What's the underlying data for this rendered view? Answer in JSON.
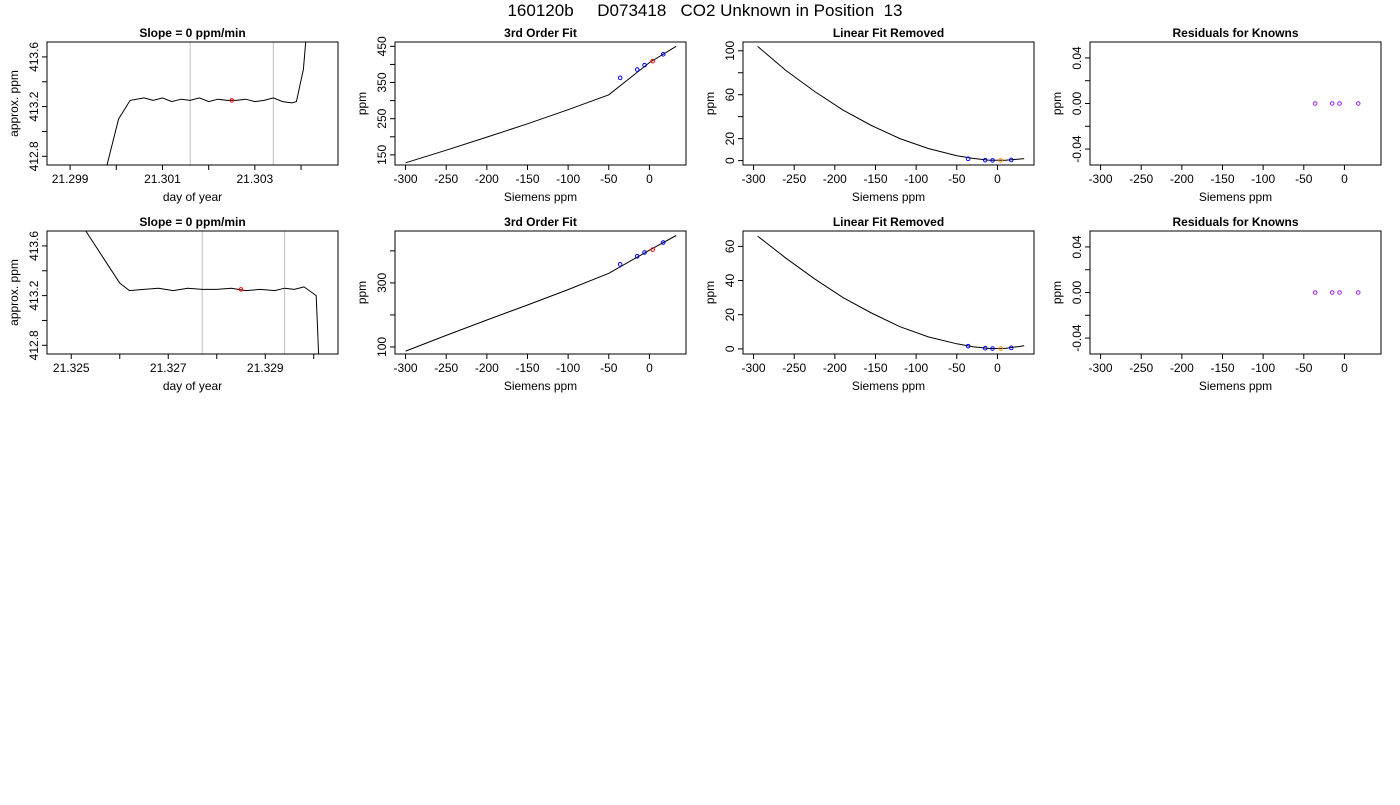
{
  "figure": {
    "title": "160120b     D073418   CO2 Unknown in Position  13"
  },
  "colors": {
    "trace": "#000000",
    "vline": "#bebebe",
    "known": "#0000ff",
    "unknown": "#ff0000",
    "unknown_lin": "#ff8c00",
    "residual": "#a020f0"
  },
  "chart_data": [
    {
      "type": "line",
      "title": "Slope =  0  ppm/min",
      "xlabel": "day of year",
      "ylabel": "approx. ppm",
      "xlim": [
        21.2985,
        21.3048
      ],
      "ylim": [
        412.73,
        413.72
      ],
      "xticks": [
        21.299,
        21.3,
        21.301,
        21.302,
        21.303,
        21.304
      ],
      "xtick_labels": [
        "21.299",
        "",
        "21.301",
        "",
        "21.303",
        ""
      ],
      "yticks": [
        412.8,
        413.0,
        413.2,
        413.4,
        413.6
      ],
      "ytick_labels": [
        "412.8",
        "",
        "413.2",
        "",
        "413.6"
      ],
      "vlines": [
        21.3016,
        21.3034
      ],
      "series": [
        {
          "kind": "line",
          "x": [
            21.2998,
            21.30005,
            21.3003,
            21.3006,
            21.3008,
            21.301,
            21.3012,
            21.3014,
            21.3016,
            21.3018,
            21.302,
            21.3022,
            21.3024,
            21.3026,
            21.3028,
            21.303,
            21.3032,
            21.3034,
            21.3036,
            21.3038,
            21.3039,
            21.30405,
            21.3041
          ],
          "y": [
            412.73,
            413.1,
            413.25,
            413.27,
            413.25,
            413.27,
            413.24,
            413.26,
            413.25,
            413.27,
            413.24,
            413.26,
            413.25,
            413.25,
            413.26,
            413.24,
            413.25,
            413.27,
            413.24,
            413.23,
            413.24,
            413.5,
            413.72
          ]
        },
        {
          "kind": "point",
          "x": [
            21.3025
          ],
          "y": [
            413.25
          ],
          "color": "unknown"
        }
      ]
    },
    {
      "type": "scatter",
      "title": "3rd Order Fit",
      "xlabel": "Siemens ppm",
      "ylabel": "ppm",
      "xlim": [
        -313,
        45
      ],
      "ylim": [
        122,
        462
      ],
      "xticks": [
        -300,
        -250,
        -200,
        -150,
        -100,
        -50,
        0
      ],
      "xtick_labels": [
        "-300",
        "-250",
        "-200",
        "-150",
        "-100",
        "-50",
        "0"
      ],
      "yticks": [
        150,
        200,
        250,
        300,
        350,
        400,
        450
      ],
      "ytick_labels": [
        "150",
        "",
        "250",
        "",
        "350",
        "",
        "450"
      ],
      "series": [
        {
          "kind": "line",
          "x": [
            -300,
            -250,
            -200,
            -150,
            -100,
            -50,
            0,
            33
          ],
          "y": [
            128,
            163,
            199,
            236,
            275,
            316,
            405,
            450
          ]
        },
        {
          "kind": "point",
          "x": [
            -36,
            -15,
            -6,
            17
          ],
          "y": [
            363,
            386,
            398,
            428
          ],
          "color": "known"
        },
        {
          "kind": "point",
          "x": [
            4
          ],
          "y": [
            409
          ],
          "color": "unknown"
        }
      ]
    },
    {
      "type": "scatter",
      "title": "Linear Fit Removed",
      "xlabel": "Siemens ppm",
      "ylabel": "ppm",
      "xlim": [
        -313,
        45
      ],
      "ylim": [
        -4,
        108
      ],
      "xticks": [
        -300,
        -250,
        -200,
        -150,
        -100,
        -50,
        0
      ],
      "xtick_labels": [
        "-300",
        "-250",
        "-200",
        "-150",
        "-100",
        "-50",
        "0"
      ],
      "yticks": [
        0,
        20,
        40,
        60,
        80,
        100
      ],
      "ytick_labels": [
        "0",
        "20",
        "",
        "60",
        "",
        "100"
      ],
      "series": [
        {
          "kind": "line",
          "x": [
            -295,
            -260,
            -225,
            -190,
            -155,
            -120,
            -85,
            -50,
            -30,
            -10,
            10,
            33
          ],
          "y": [
            104,
            82,
            63,
            46,
            32,
            20,
            11,
            4.5,
            2,
            0.3,
            0.3,
            1.8
          ]
        },
        {
          "kind": "point",
          "x": [
            -36,
            -15,
            -6,
            17
          ],
          "y": [
            1.6,
            0.4,
            0.2,
            0.6
          ],
          "color": "known"
        },
        {
          "kind": "point",
          "x": [
            4
          ],
          "y": [
            0.2
          ],
          "color": "unknown_lin"
        }
      ]
    },
    {
      "type": "scatter",
      "title": "Residuals for Knowns",
      "xlabel": "Siemens ppm",
      "ylabel": "ppm",
      "xlim": [
        -313,
        45
      ],
      "ylim": [
        -0.054,
        0.054
      ],
      "xticks": [
        -300,
        -250,
        -200,
        -150,
        -100,
        -50,
        0
      ],
      "xtick_labels": [
        "-300",
        "-250",
        "-200",
        "-150",
        "-100",
        "-50",
        "0"
      ],
      "yticks": [
        -0.04,
        -0.02,
        0,
        0.02,
        0.04
      ],
      "ytick_labels": [
        "-0.04",
        "",
        "0.00",
        "",
        "0.04"
      ],
      "series": [
        {
          "kind": "point",
          "x": [
            -36,
            -15,
            -6,
            17
          ],
          "y": [
            0,
            0,
            0,
            0
          ],
          "color": "residual"
        }
      ]
    },
    {
      "type": "line",
      "title": "Slope =  0  ppm/min",
      "xlabel": "day of year",
      "ylabel": "approx. ppm",
      "xlim": [
        21.3245,
        21.3305
      ],
      "ylim": [
        412.73,
        413.72
      ],
      "xticks": [
        21.325,
        21.326,
        21.327,
        21.328,
        21.329,
        21.33
      ],
      "xtick_labels": [
        "21.325",
        "",
        "21.327",
        "",
        "21.329",
        ""
      ],
      "yticks": [
        412.8,
        413.0,
        413.2,
        413.4,
        413.6
      ],
      "ytick_labels": [
        "412.8",
        "",
        "413.2",
        "",
        "413.6"
      ],
      "vlines": [
        21.3277,
        21.3294
      ],
      "series": [
        {
          "kind": "line",
          "x": [
            21.3253,
            21.3257,
            21.326,
            21.3262,
            21.3265,
            21.3268,
            21.3271,
            21.3274,
            21.3277,
            21.328,
            21.3283,
            21.3286,
            21.3289,
            21.3292,
            21.3294,
            21.3296,
            21.3298,
            21.33005,
            21.3301
          ],
          "y": [
            413.72,
            413.48,
            413.3,
            413.24,
            413.25,
            413.26,
            413.24,
            413.26,
            413.25,
            413.25,
            413.26,
            413.24,
            413.25,
            413.24,
            413.26,
            413.25,
            413.27,
            413.2,
            412.73
          ]
        },
        {
          "kind": "point",
          "x": [
            21.3285
          ],
          "y": [
            413.25
          ],
          "color": "unknown"
        }
      ]
    },
    {
      "type": "scatter",
      "title": "3rd Order Fit",
      "xlabel": "Siemens ppm",
      "ylabel": "ppm",
      "xlim": [
        -313,
        45
      ],
      "ylim": [
        78,
        462
      ],
      "xticks": [
        -300,
        -250,
        -200,
        -150,
        -100,
        -50,
        0
      ],
      "xtick_labels": [
        "-300",
        "-250",
        "-200",
        "-150",
        "-100",
        "-50",
        "0"
      ],
      "yticks": [
        100,
        200,
        300,
        400
      ],
      "ytick_labels": [
        "100",
        "",
        "300",
        ""
      ],
      "series": [
        {
          "kind": "line",
          "x": [
            -300,
            -250,
            -200,
            -150,
            -100,
            -50,
            0,
            33
          ],
          "y": [
            87,
            136,
            184,
            231,
            279,
            330,
            402,
            448
          ]
        },
        {
          "kind": "point",
          "x": [
            -36,
            -15,
            -6,
            17
          ],
          "y": [
            358,
            383,
            395,
            426
          ],
          "color": "known"
        },
        {
          "kind": "point",
          "x": [
            4
          ],
          "y": [
            404
          ],
          "color": "unknown"
        }
      ]
    },
    {
      "type": "scatter",
      "title": "Linear Fit Removed",
      "xlabel": "Siemens ppm",
      "ylabel": "ppm",
      "xlim": [
        -313,
        45
      ],
      "ylim": [
        -3,
        69
      ],
      "xticks": [
        -300,
        -250,
        -200,
        -150,
        -100,
        -50,
        0
      ],
      "xtick_labels": [
        "-300",
        "-250",
        "-200",
        "-150",
        "-100",
        "-50",
        "0"
      ],
      "yticks": [
        0,
        20,
        40,
        60
      ],
      "ytick_labels": [
        "0",
        "20",
        "40",
        "60"
      ],
      "series": [
        {
          "kind": "line",
          "x": [
            -295,
            -260,
            -225,
            -190,
            -155,
            -120,
            -85,
            -50,
            -30,
            -10,
            10,
            33
          ],
          "y": [
            66,
            53,
            41,
            30,
            21,
            13,
            7,
            3,
            1.3,
            0.2,
            0.3,
            1.8
          ]
        },
        {
          "kind": "point",
          "x": [
            -36,
            -15,
            -6,
            17
          ],
          "y": [
            1.6,
            0.4,
            0.2,
            0.6
          ],
          "color": "known"
        },
        {
          "kind": "point",
          "x": [
            4
          ],
          "y": [
            0.2
          ],
          "color": "unknown_lin"
        }
      ]
    },
    {
      "type": "scatter",
      "title": "Residuals for Knowns",
      "xlabel": "Siemens ppm",
      "ylabel": "ppm",
      "xlim": [
        -313,
        45
      ],
      "ylim": [
        -0.054,
        0.054
      ],
      "xticks": [
        -300,
        -250,
        -200,
        -150,
        -100,
        -50,
        0
      ],
      "xtick_labels": [
        "-300",
        "-250",
        "-200",
        "-150",
        "-100",
        "-50",
        "0"
      ],
      "yticks": [
        -0.04,
        -0.02,
        0,
        0.02,
        0.04
      ],
      "ytick_labels": [
        "-0.04",
        "",
        "0.00",
        "",
        "0.04"
      ],
      "series": [
        {
          "kind": "point",
          "x": [
            -36,
            -15,
            -6,
            17
          ],
          "y": [
            0,
            0,
            0,
            0
          ],
          "color": "residual"
        }
      ]
    }
  ]
}
